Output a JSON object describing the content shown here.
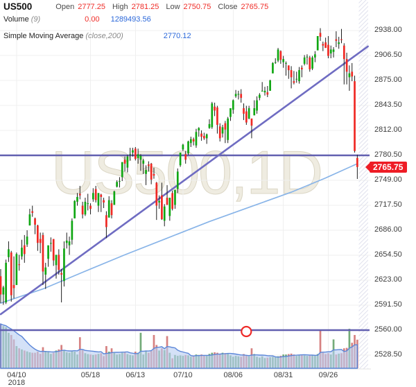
{
  "header": {
    "symbol": "US500",
    "ohlc": {
      "open_label": "Open",
      "open": "2777.25",
      "high_label": "High",
      "high": "2781.25",
      "low_label": "Low",
      "low": "2750.75",
      "close_label": "Close",
      "close": "2765.75"
    },
    "volume_row": {
      "label": "Volume",
      "param": "(9)",
      "value_current": "0.00",
      "value_ma": "1289493.56"
    },
    "sma_row": {
      "label": "Simple Moving Average",
      "param": "(close,200)",
      "value": "2770.12"
    }
  },
  "watermark": "US500,1D",
  "price_badge": "2765.75",
  "colors": {
    "candle_up": "#10a713",
    "candle_down": "#ef2823",
    "wick": "#1c1c1c",
    "volume_up": "#74ab79",
    "volume_down": "#d68181",
    "volume_area_fill": "#b9cff2",
    "volume_area_stroke": "#5b86d8",
    "sma_line": "#88b4e8",
    "trend_line": "#6f6cc2",
    "support_line": "#615fb0",
    "marker_stroke": "#ee2a28",
    "badge_bg": "#ee1c25",
    "value_red": "#ef2c27",
    "value_blue": "#2b68da",
    "grid": "#efefef",
    "hatch": "#e2e3ee",
    "axis_text": "#3c3c3c"
  },
  "chart_data": {
    "type": "candlestick",
    "symbol": "US500",
    "timeframe": "1D",
    "price_range": [
      2528.5,
      2938.0
    ],
    "grid": true,
    "y_ticks": [
      {
        "label": "2938.00",
        "price": 2938.0
      },
      {
        "label": "2906.50",
        "price": 2906.5
      },
      {
        "label": "2875.00",
        "price": 2875.0
      },
      {
        "label": "2843.50",
        "price": 2843.5
      },
      {
        "label": "2812.00",
        "price": 2812.0
      },
      {
        "label": "2780.50",
        "price": 2780.5
      },
      {
        "label": "2749.00",
        "price": 2749.0
      },
      {
        "label": "2717.50",
        "price": 2717.5
      },
      {
        "label": "2686.00",
        "price": 2686.0
      },
      {
        "label": "2654.50",
        "price": 2654.5
      },
      {
        "label": "2623.00",
        "price": 2623.0
      },
      {
        "label": "2591.50",
        "price": 2591.5
      },
      {
        "label": "2560.00",
        "price": 2560.0
      },
      {
        "label": "2528.50",
        "price": 2528.5
      }
    ],
    "x_ticks": [
      {
        "label": "04/10",
        "bar": 6,
        "year": "2018"
      },
      {
        "label": "05/18",
        "bar": 34
      },
      {
        "label": "06/13",
        "bar": 51
      },
      {
        "label": "07/10",
        "bar": 69
      },
      {
        "label": "08/06",
        "bar": 88
      },
      {
        "label": "08/31",
        "bar": 107
      },
      {
        "label": "09/26",
        "bar": 124
      }
    ],
    "bars_format": [
      "date",
      "open",
      "high",
      "low",
      "close",
      "volume"
    ],
    "bars": [
      [
        "04/02",
        2628,
        2637,
        2594,
        2605,
        2000
      ],
      [
        "04/03",
        2605,
        2616,
        2592,
        2614,
        1900
      ],
      [
        "04/04",
        2595,
        2649,
        2593,
        2645,
        1850
      ],
      [
        "04/05",
        2652,
        2672,
        2646,
        2662,
        1600
      ],
      [
        "04/06",
        2658,
        2660,
        2596,
        2604,
        1500
      ],
      [
        "04/09",
        2617,
        2653,
        2600,
        2613,
        1300
      ],
      [
        "04/10",
        2617,
        2658,
        2617,
        2656,
        1000
      ],
      [
        "04/11",
        2643,
        2655,
        2635,
        2642,
        900
      ],
      [
        "04/12",
        2653,
        2674,
        2649,
        2664,
        850
      ],
      [
        "04/13",
        2667,
        2680,
        2645,
        2656,
        800
      ],
      [
        "04/16",
        2668,
        2686,
        2665,
        2678,
        760
      ],
      [
        "04/17",
        2692,
        2713,
        2692,
        2706,
        720
      ],
      [
        "04/18",
        2710,
        2717,
        2703,
        2708,
        700
      ],
      [
        "04/19",
        2701,
        2702,
        2681,
        2693,
        700
      ],
      [
        "04/20",
        2692,
        2693,
        2660,
        2670,
        750
      ],
      [
        "04/23",
        2675,
        2683,
        2657,
        2670,
        650
      ],
      [
        "04/24",
        2680,
        2683,
        2617,
        2634,
        950
      ],
      [
        "04/25",
        2630,
        2645,
        2612,
        2639,
        780
      ],
      [
        "04/26",
        2650,
        2666,
        2640,
        2667,
        760
      ],
      [
        "04/27",
        2669,
        2677,
        2659,
        2670,
        650
      ],
      [
        "04/30",
        2675,
        2675,
        2641,
        2648,
        700
      ],
      [
        "05/01",
        2642,
        2655,
        2625,
        2655,
        800
      ],
      [
        "05/02",
        2655,
        2662,
        2630,
        2636,
        850
      ],
      [
        "05/03",
        2632,
        2637,
        2595,
        2630,
        1050
      ],
      [
        "05/04",
        2622,
        2672,
        2615,
        2663,
        800
      ],
      [
        "05/07",
        2670,
        2683,
        2663,
        2673,
        720
      ],
      [
        "05/08",
        2667,
        2678,
        2655,
        2672,
        700
      ],
      [
        "05/09",
        2674,
        2701,
        2668,
        2698,
        780
      ],
      [
        "05/10",
        2701,
        2724,
        2701,
        2723,
        750
      ],
      [
        "05/11",
        2722,
        2733,
        2717,
        2728,
        620
      ],
      [
        "05/14",
        2732,
        2742,
        2725,
        2730,
        1400
      ],
      [
        "05/15",
        2717,
        2722,
        2701,
        2706,
        820
      ],
      [
        "05/16",
        2706,
        2727,
        2704,
        2722,
        680
      ],
      [
        "05/17",
        2720,
        2732,
        2711,
        2720,
        640
      ],
      [
        "05/18",
        2717,
        2720,
        2706,
        2713,
        620
      ],
      [
        "05/21",
        2725,
        2739,
        2722,
        2733,
        600
      ],
      [
        "05/22",
        2738,
        2742,
        2721,
        2724,
        620
      ],
      [
        "05/23",
        2717,
        2733,
        2709,
        2733,
        650
      ],
      [
        "05/24",
        2731,
        2732,
        2709,
        2728,
        680
      ],
      [
        "05/25",
        2724,
        2727,
        2714,
        2721,
        550
      ],
      [
        "05/29",
        2705,
        2710,
        2676,
        2690,
        1000
      ],
      [
        "05/30",
        2702,
        2729,
        2702,
        2724,
        750
      ],
      [
        "05/31",
        2720,
        2724,
        2701,
        2705,
        900
      ],
      [
        "06/01",
        2718,
        2736,
        2718,
        2735,
        700
      ],
      [
        "06/04",
        2741,
        2749,
        2740,
        2747,
        620
      ],
      [
        "06/05",
        2748,
        2753,
        2740,
        2748,
        640
      ],
      [
        "06/06",
        2753,
        2772,
        2748,
        2772,
        700
      ],
      [
        "06/07",
        2775,
        2779,
        2760,
        2770,
        720
      ],
      [
        "06/08",
        2765,
        2781,
        2759,
        2779,
        640
      ],
      [
        "06/11",
        2782,
        2790,
        2774,
        2782,
        600
      ],
      [
        "06/12",
        2784,
        2790,
        2779,
        2787,
        580
      ],
      [
        "06/13",
        2789,
        2791,
        2774,
        2776,
        750
      ],
      [
        "06/14",
        2777,
        2789,
        2770,
        2782,
        700
      ],
      [
        "06/15",
        2775,
        2782,
        2761,
        2780,
        1600
      ],
      [
        "06/18",
        2770,
        2776,
        2757,
        2774,
        620
      ],
      [
        "06/19",
        2757,
        2768,
        2743,
        2762,
        800
      ],
      [
        "06/20",
        2769,
        2773,
        2760,
        2767,
        700
      ],
      [
        "06/21",
        2770,
        2771,
        2744,
        2750,
        780
      ],
      [
        "06/22",
        2757,
        2765,
        2751,
        2755,
        1500
      ],
      [
        "06/25",
        2746,
        2747,
        2699,
        2717,
        1050
      ],
      [
        "06/26",
        2721,
        2730,
        2713,
        2723,
        800
      ],
      [
        "06/27",
        2730,
        2746,
        2699,
        2700,
        900
      ],
      [
        "06/28",
        2698,
        2719,
        2691,
        2716,
        820
      ],
      [
        "06/29",
        2727,
        2743,
        2718,
        2718,
        1450
      ],
      [
        "07/02",
        2704,
        2727,
        2698,
        2727,
        700
      ],
      [
        "07/03",
        2733,
        2736,
        2711,
        2713,
        450
      ],
      [
        "07/05",
        2718,
        2737,
        2713,
        2737,
        600
      ],
      [
        "07/06",
        2738,
        2764,
        2733,
        2760,
        560
      ],
      [
        "07/09",
        2768,
        2784,
        2766,
        2784,
        580
      ],
      [
        "07/10",
        2788,
        2795,
        2786,
        2794,
        560
      ],
      [
        "07/11",
        2782,
        2786,
        2770,
        2775,
        600
      ],
      [
        "07/12",
        2783,
        2799,
        2781,
        2798,
        580
      ],
      [
        "07/13",
        2796,
        2804,
        2791,
        2801,
        520
      ],
      [
        "07/16",
        2801,
        2803,
        2793,
        2798,
        540
      ],
      [
        "07/17",
        2793,
        2814,
        2790,
        2810,
        620
      ],
      [
        "07/18",
        2812,
        2816,
        2804,
        2815,
        600
      ],
      [
        "07/19",
        2808,
        2812,
        2799,
        2804,
        620
      ],
      [
        "07/20",
        2805,
        2809,
        2800,
        2802,
        580
      ],
      [
        "07/23",
        2802,
        2808,
        2795,
        2807,
        560
      ],
      [
        "07/24",
        2815,
        2826,
        2814,
        2820,
        650
      ],
      [
        "07/25",
        2816,
        2848,
        2814,
        2846,
        700
      ],
      [
        "07/26",
        2842,
        2847,
        2830,
        2837,
        720
      ],
      [
        "07/27",
        2841,
        2843,
        2808,
        2819,
        700
      ],
      [
        "07/30",
        2817,
        2821,
        2798,
        2802,
        640
      ],
      [
        "07/31",
        2808,
        2819,
        2803,
        2816,
        700
      ],
      [
        "08/01",
        2821,
        2824,
        2796,
        2813,
        680
      ],
      [
        "08/02",
        2800,
        2829,
        2796,
        2827,
        660
      ],
      [
        "08/03",
        2829,
        2840,
        2824,
        2840,
        580
      ],
      [
        "08/06",
        2838,
        2851,
        2833,
        2850,
        520
      ],
      [
        "08/07",
        2855,
        2863,
        2853,
        2858,
        560
      ],
      [
        "08/08",
        2857,
        2862,
        2851,
        2858,
        540
      ],
      [
        "08/09",
        2858,
        2864,
        2847,
        2853,
        520
      ],
      [
        "08/10",
        2840,
        2846,
        2825,
        2833,
        640
      ],
      [
        "08/13",
        2836,
        2843,
        2819,
        2822,
        560
      ],
      [
        "08/14",
        2827,
        2843,
        2826,
        2840,
        540
      ],
      [
        "08/15",
        2827,
        2827,
        2802,
        2818,
        900
      ],
      [
        "08/16",
        2831,
        2850,
        2831,
        2840,
        640
      ],
      [
        "08/17",
        2837,
        2855,
        2833,
        2850,
        520
      ],
      [
        "08/20",
        2853,
        2859,
        2850,
        2857,
        480
      ],
      [
        "08/21",
        2861,
        2873,
        2861,
        2862,
        540
      ],
      [
        "08/22",
        2860,
        2867,
        2856,
        2862,
        460
      ],
      [
        "08/23",
        2860,
        2868,
        2854,
        2857,
        480
      ],
      [
        "08/24",
        2862,
        2876,
        2862,
        2875,
        500
      ],
      [
        "08/27",
        2884,
        2898,
        2884,
        2897,
        520
      ],
      [
        "08/28",
        2898,
        2903,
        2896,
        2898,
        500
      ],
      [
        "08/29",
        2900,
        2916,
        2898,
        2914,
        540
      ],
      [
        "08/30",
        2912,
        2913,
        2896,
        2901,
        560
      ],
      [
        "08/31",
        2898,
        2906,
        2891,
        2902,
        620
      ],
      [
        "09/04",
        2897,
        2899,
        2881,
        2897,
        620
      ],
      [
        "09/05",
        2894,
        2894,
        2877,
        2888,
        640
      ],
      [
        "09/06",
        2888,
        2893,
        2865,
        2879,
        660
      ],
      [
        "09/07",
        2874,
        2887,
        2870,
        2872,
        620
      ],
      [
        "09/10",
        2877,
        2886,
        2872,
        2877,
        560
      ],
      [
        "09/11",
        2874,
        2892,
        2871,
        2888,
        580
      ],
      [
        "09/12",
        2891,
        2894,
        2879,
        2889,
        600
      ],
      [
        "09/13",
        2896,
        2907,
        2894,
        2904,
        580
      ],
      [
        "09/14",
        2905,
        2908,
        2895,
        2905,
        560
      ],
      [
        "09/17",
        2904,
        2906,
        2886,
        2889,
        580
      ],
      [
        "09/18",
        2890,
        2906,
        2888,
        2904,
        600
      ],
      [
        "09/19",
        2904,
        2912,
        2898,
        2908,
        580
      ],
      [
        "09/20",
        2913,
        2931,
        2913,
        2931,
        640
      ],
      [
        "09/21",
        2935,
        2941,
        2925,
        2930,
        1700
      ],
      [
        "09/24",
        2921,
        2924,
        2912,
        2919,
        700
      ],
      [
        "09/25",
        2923,
        2929,
        2916,
        2916,
        640
      ],
      [
        "09/26",
        2920,
        2931,
        2903,
        2906,
        680
      ],
      [
        "09/27",
        2909,
        2919,
        2903,
        2914,
        620
      ],
      [
        "09/28",
        2911,
        2917,
        2904,
        2914,
        1300
      ],
      [
        "10/01",
        2927,
        2937,
        2917,
        2925,
        620
      ],
      [
        "10/02",
        2921,
        2930,
        2915,
        2923,
        660
      ],
      [
        "10/03",
        2927,
        2940,
        2922,
        2926,
        680
      ],
      [
        "10/04",
        2919,
        2922,
        2870,
        2902,
        900
      ],
      [
        "10/05",
        2902,
        2910,
        2870,
        2886,
        920
      ],
      [
        "10/08",
        2879,
        2894,
        2862,
        2884,
        1780
      ],
      [
        "10/09",
        2886,
        2897,
        2874,
        2880,
        1150
      ],
      [
        "10/10",
        2874,
        2881,
        2784,
        2786,
        1500
      ],
      [
        "10/11",
        2777.25,
        2781.25,
        2750.75,
        2765.75,
        1289
      ]
    ],
    "overlays": {
      "sma200": {
        "name": "Simple Moving Average (close,200)",
        "last_value": 2770.12,
        "points": [
          [
            0,
            2594
          ],
          [
            16,
            2612
          ],
          [
            31,
            2633
          ],
          [
            47,
            2655
          ],
          [
            63,
            2676
          ],
          [
            79,
            2697
          ],
          [
            94,
            2715
          ],
          [
            110,
            2734
          ],
          [
            123,
            2752
          ],
          [
            135,
            2770
          ]
        ]
      },
      "trendline": {
        "from_bar": 0,
        "from_price": 2580,
        "to_bar": 139,
        "to_price": 2918
      },
      "hlines": [
        {
          "price": 2780.5
        },
        {
          "price": 2560.0
        }
      ],
      "marker": {
        "bar": 93,
        "price": 2560.0
      }
    },
    "volume_ma_period": 9,
    "legend_position": "top-left"
  }
}
